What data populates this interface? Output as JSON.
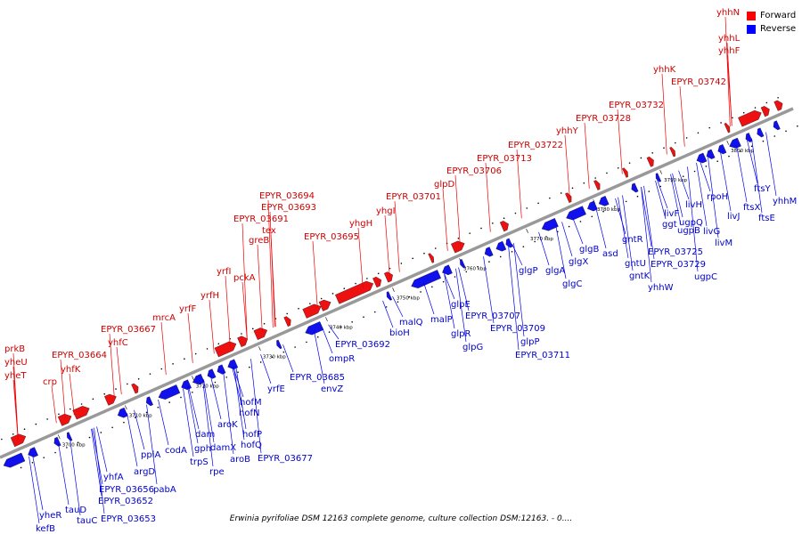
{
  "legend": {
    "forward_label": "Forward",
    "reverse_label": "Reverse",
    "forward_color": "#ff0000",
    "reverse_color": "#0000ff"
  },
  "colors": {
    "axis": "#999999",
    "forward_gene": "#ee1111",
    "reverse_gene": "#1111ee",
    "tick": "#000000"
  },
  "caption": "Erwinia pyrifoliae DSM 12163 complete genome, culture collection DSM:12163. - 0....",
  "scale_ticks": [
    "3700 kbp",
    "3710 kbp",
    "3720 kbp",
    "3730 kbp",
    "3740 kbp",
    "3750 kbp",
    "3760 kbp",
    "3770 kbp",
    "3780 kbp",
    "3790 kbp",
    "3800 kbp"
  ],
  "forward_genes": [
    "prkB",
    "yheU",
    "yheT",
    "crp",
    "EPYR_03664",
    "yhfK",
    "yhfC",
    "EPYR_03667",
    "mrcA",
    "yrfF",
    "yrfH",
    "yrfI",
    "pckA",
    "greB",
    "tex",
    "EPYR_03691",
    "EPYR_03693",
    "EPYR_03694",
    "EPYR_03695",
    "yhgH",
    "yhgI",
    "EPYR_03701",
    "glpD",
    "EPYR_03706",
    "EPYR_03713",
    "EPYR_03722",
    "yhhY",
    "EPYR_03728",
    "EPYR_03732",
    "yhhK",
    "EPYR_03742",
    "yhhF",
    "yhhL",
    "yhhN"
  ],
  "reverse_genes": [
    "kefB",
    "yheR",
    "tauC",
    "tauD",
    "EPYR_03653",
    "EPYR_03652",
    "EPYR_03656",
    "yhfA",
    "argD",
    "pabA",
    "ppiA",
    "codA",
    "trpS",
    "gph",
    "rpe",
    "dam",
    "damX",
    "aroB",
    "aroK",
    "hofP",
    "hofQ",
    "EPYR_03677",
    "hofN",
    "hofM",
    "yrfE",
    "EPYR_03685",
    "envZ",
    "ompR",
    "EPYR_03692",
    "bioH",
    "malQ",
    "malP",
    "glpE",
    "glpR",
    "glpG",
    "EPYR_03707",
    "EPYR_03709",
    "glpP",
    "EPYR_03711",
    "glgP",
    "glgA",
    "glgX",
    "glgC",
    "glgB",
    "asd",
    "gntR",
    "gntU",
    "gntK",
    "yhhW",
    "EPYR_03725",
    "ggt",
    "EPYR_03729",
    "ugpB",
    "ugpQ",
    "ugpC",
    "livF",
    "livH",
    "livG",
    "livM",
    "livJ",
    "rpoH",
    "ftsX",
    "ftsY",
    "ftsE",
    "yhhM"
  ]
}
